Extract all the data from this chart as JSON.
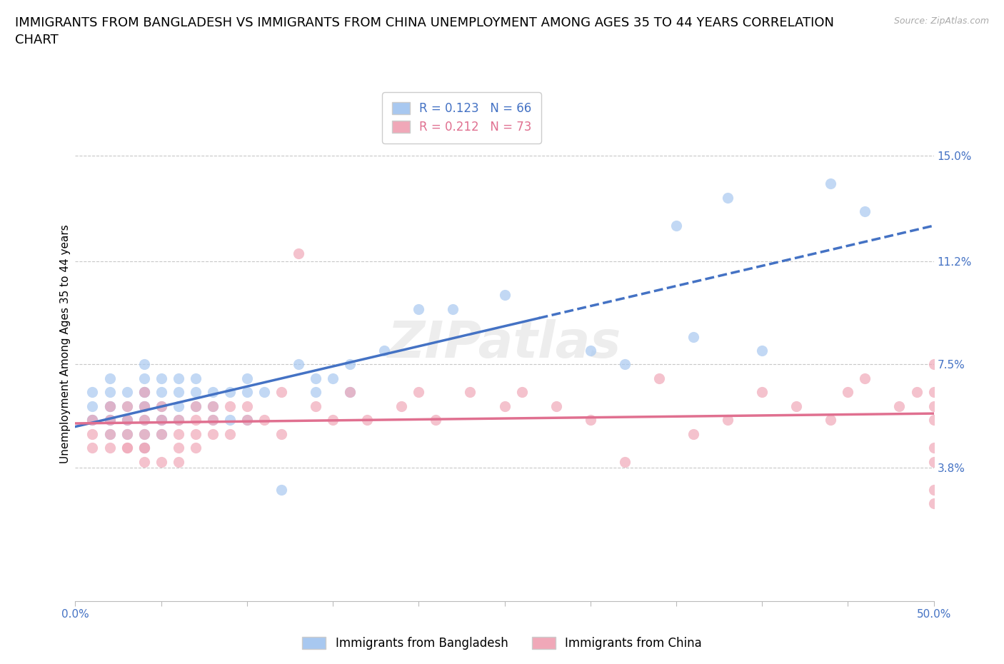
{
  "title": "IMMIGRANTS FROM BANGLADESH VS IMMIGRANTS FROM CHINA UNEMPLOYMENT AMONG AGES 35 TO 44 YEARS CORRELATION\nCHART",
  "source_text": "Source: ZipAtlas.com",
  "ylabel": "Unemployment Among Ages 35 to 44 years",
  "xlim": [
    0.0,
    0.5
  ],
  "ylim": [
    -0.01,
    0.175
  ],
  "right_yticks": [
    0.038,
    0.075,
    0.112,
    0.15
  ],
  "right_yticklabels": [
    "3.8%",
    "7.5%",
    "11.2%",
    "15.0%"
  ],
  "bangladesh_color": "#a8c8f0",
  "china_color": "#f0a8b8",
  "bangladesh_line_color": "#4472c4",
  "china_line_color": "#e07090",
  "grid_color": "#c8c8c8",
  "title_fontsize": 13,
  "axis_label_fontsize": 11,
  "tick_fontsize": 11,
  "legend_fontsize": 12,
  "background_color": "#ffffff",
  "bangladesh_scatter_x": [
    0.01,
    0.01,
    0.01,
    0.01,
    0.02,
    0.02,
    0.02,
    0.02,
    0.02,
    0.02,
    0.02,
    0.03,
    0.03,
    0.03,
    0.03,
    0.03,
    0.04,
    0.04,
    0.04,
    0.04,
    0.04,
    0.04,
    0.04,
    0.04,
    0.04,
    0.05,
    0.05,
    0.05,
    0.05,
    0.05,
    0.05,
    0.06,
    0.06,
    0.06,
    0.06,
    0.07,
    0.07,
    0.07,
    0.08,
    0.08,
    0.08,
    0.09,
    0.09,
    0.1,
    0.1,
    0.1,
    0.11,
    0.12,
    0.13,
    0.14,
    0.14,
    0.15,
    0.16,
    0.16,
    0.18,
    0.2,
    0.22,
    0.25,
    0.3,
    0.32,
    0.35,
    0.36,
    0.38,
    0.4,
    0.44,
    0.46
  ],
  "bangladesh_scatter_y": [
    0.055,
    0.065,
    0.055,
    0.06,
    0.05,
    0.055,
    0.06,
    0.065,
    0.07,
    0.055,
    0.06,
    0.05,
    0.055,
    0.06,
    0.065,
    0.055,
    0.045,
    0.05,
    0.055,
    0.06,
    0.065,
    0.07,
    0.075,
    0.065,
    0.06,
    0.055,
    0.06,
    0.065,
    0.07,
    0.055,
    0.05,
    0.065,
    0.07,
    0.06,
    0.055,
    0.065,
    0.07,
    0.06,
    0.06,
    0.065,
    0.055,
    0.065,
    0.055,
    0.065,
    0.07,
    0.055,
    0.065,
    0.03,
    0.075,
    0.07,
    0.065,
    0.07,
    0.065,
    0.075,
    0.08,
    0.095,
    0.095,
    0.1,
    0.08,
    0.075,
    0.125,
    0.085,
    0.135,
    0.08,
    0.14,
    0.13
  ],
  "china_scatter_x": [
    0.01,
    0.01,
    0.01,
    0.02,
    0.02,
    0.02,
    0.02,
    0.03,
    0.03,
    0.03,
    0.03,
    0.03,
    0.04,
    0.04,
    0.04,
    0.04,
    0.04,
    0.04,
    0.04,
    0.05,
    0.05,
    0.05,
    0.05,
    0.06,
    0.06,
    0.06,
    0.06,
    0.07,
    0.07,
    0.07,
    0.07,
    0.08,
    0.08,
    0.08,
    0.09,
    0.09,
    0.1,
    0.1,
    0.11,
    0.12,
    0.12,
    0.13,
    0.14,
    0.15,
    0.16,
    0.17,
    0.19,
    0.2,
    0.21,
    0.23,
    0.25,
    0.26,
    0.28,
    0.3,
    0.32,
    0.34,
    0.36,
    0.38,
    0.4,
    0.42,
    0.44,
    0.45,
    0.46,
    0.48,
    0.49,
    0.5,
    0.5,
    0.5,
    0.5,
    0.5,
    0.5,
    0.5,
    0.5
  ],
  "china_scatter_y": [
    0.05,
    0.045,
    0.055,
    0.045,
    0.055,
    0.05,
    0.06,
    0.045,
    0.05,
    0.055,
    0.06,
    0.045,
    0.04,
    0.045,
    0.05,
    0.055,
    0.06,
    0.065,
    0.045,
    0.05,
    0.055,
    0.04,
    0.06,
    0.045,
    0.05,
    0.055,
    0.04,
    0.05,
    0.055,
    0.045,
    0.06,
    0.05,
    0.055,
    0.06,
    0.05,
    0.06,
    0.055,
    0.06,
    0.055,
    0.065,
    0.05,
    0.115,
    0.06,
    0.055,
    0.065,
    0.055,
    0.06,
    0.065,
    0.055,
    0.065,
    0.06,
    0.065,
    0.06,
    0.055,
    0.04,
    0.07,
    0.05,
    0.055,
    0.065,
    0.06,
    0.055,
    0.065,
    0.07,
    0.06,
    0.065,
    0.055,
    0.06,
    0.04,
    0.065,
    0.045,
    0.03,
    0.025,
    0.075
  ]
}
